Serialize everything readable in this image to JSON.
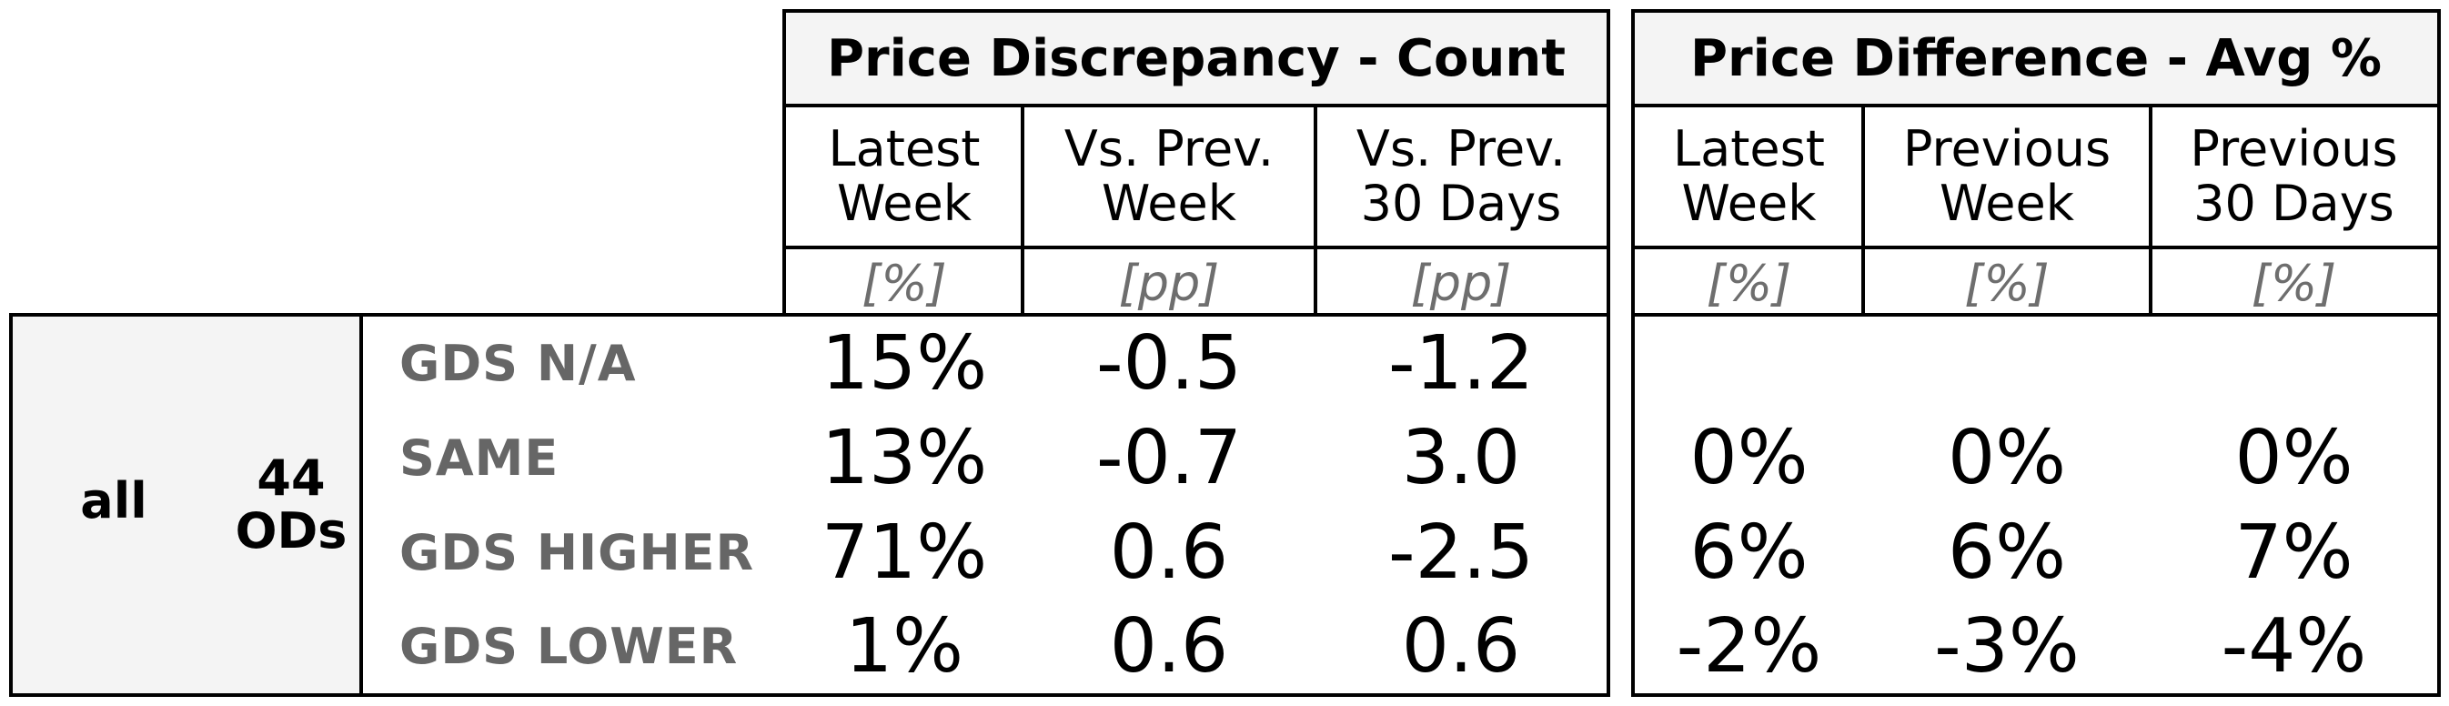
{
  "chart_data": {
    "type": "table",
    "group": {
      "label": "all",
      "count_line1": "44",
      "count_line2": "ODs"
    },
    "row_labels": [
      "GDS N/A",
      "SAME",
      "GDS HIGHER",
      "GDS LOWER"
    ],
    "sections": [
      {
        "title": "Price Discrepancy - Count",
        "columns": [
          {
            "line1": "Latest",
            "line2": "Week",
            "unit": "[%]",
            "values": [
              "15%",
              "13%",
              "71%",
              "1%"
            ],
            "colors": [
              "#e3f0df",
              "#e6f2e2",
              "#8bc571",
              "#fbfdfa"
            ]
          },
          {
            "line1": "Vs. Prev.",
            "line2": "Week",
            "unit": "[pp]",
            "values": [
              "-0.5",
              "-0.7",
              "0.6",
              "0.6"
            ],
            "colors": [
              "#dde6f3",
              "#fbd6d6",
              "#fcdcdc",
              "#fcdcdc"
            ]
          },
          {
            "line1": "Vs. Prev.",
            "line2": "30 Days",
            "unit": "[pp]",
            "values": [
              "-1.2",
              "3.0",
              "-2.5",
              "0.6"
            ],
            "colors": [
              "#b5c8e4",
              "#5b8bc7",
              "#6c97cd",
              "#fcdcdc"
            ]
          }
        ]
      },
      {
        "title": "Price Difference - Avg %",
        "columns": [
          {
            "line1": "Latest",
            "line2": "Week",
            "unit": "[%]",
            "values": [
              "",
              "0%",
              "6%",
              "-2%"
            ],
            "colors": [
              "#ffffff",
              "#ffffff",
              "#f77c7c",
              "#fbcaca"
            ]
          },
          {
            "line1": "Previous",
            "line2": "Week",
            "unit": "[%]",
            "values": [
              "",
              "0%",
              "6%",
              "-3%"
            ],
            "colors": [
              "#ffffff",
              "#ffffff",
              "#f77c7c",
              "#fab6b6"
            ]
          },
          {
            "line1": "Previous",
            "line2": "30 Days",
            "unit": "[%]",
            "values": [
              "",
              "0%",
              "7%",
              "-4%"
            ],
            "colors": [
              "#ffffff",
              "#ffffff",
              "#f76767",
              "#f8acac"
            ]
          }
        ]
      }
    ]
  }
}
